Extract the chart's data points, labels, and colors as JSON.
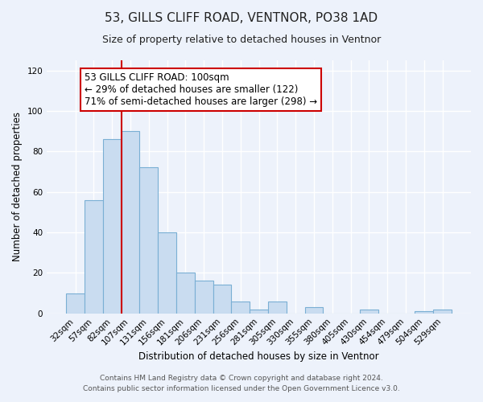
{
  "title": "53, GILLS CLIFF ROAD, VENTNOR, PO38 1AD",
  "subtitle": "Size of property relative to detached houses in Ventnor",
  "xlabel": "Distribution of detached houses by size in Ventnor",
  "ylabel": "Number of detached properties",
  "bar_labels": [
    "32sqm",
    "57sqm",
    "82sqm",
    "107sqm",
    "131sqm",
    "156sqm",
    "181sqm",
    "206sqm",
    "231sqm",
    "256sqm",
    "281sqm",
    "305sqm",
    "330sqm",
    "355sqm",
    "380sqm",
    "405sqm",
    "430sqm",
    "454sqm",
    "479sqm",
    "504sqm",
    "529sqm"
  ],
  "bar_values": [
    10,
    56,
    86,
    90,
    72,
    40,
    20,
    16,
    14,
    6,
    2,
    6,
    0,
    3,
    0,
    0,
    2,
    0,
    0,
    1,
    2
  ],
  "bar_color": "#c9dcf0",
  "bar_edge_color": "#7aafd4",
  "vline_color": "#cc0000",
  "ylim": [
    0,
    125
  ],
  "yticks": [
    0,
    20,
    40,
    60,
    80,
    100,
    120
  ],
  "annotation_line1": "53 GILLS CLIFF ROAD: 100sqm",
  "annotation_line2": "← 29% of detached houses are smaller (122)",
  "annotation_line3": "71% of semi-detached houses are larger (298) →",
  "footer_line1": "Contains HM Land Registry data © Crown copyright and database right 2024.",
  "footer_line2": "Contains public sector information licensed under the Open Government Licence v3.0.",
  "background_color": "#edf2fb",
  "grid_color": "#ffffff",
  "title_fontsize": 11,
  "subtitle_fontsize": 9,
  "axis_label_fontsize": 8.5,
  "tick_fontsize": 7.5,
  "footer_fontsize": 6.5,
  "annotation_fontsize": 8.5
}
